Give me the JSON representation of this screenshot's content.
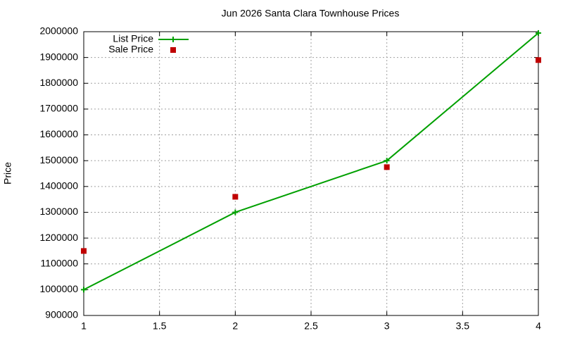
{
  "chart_data": {
    "type": "line",
    "title": "Jun 2026 Santa Clara Townhouse Prices",
    "y_label": "Price",
    "x": [
      1,
      2,
      3,
      4
    ],
    "series": [
      {
        "name": "List Price",
        "color": "#00a000",
        "mode": "lines+markers",
        "values": [
          1000000,
          1300000,
          1500000,
          1995000
        ]
      },
      {
        "name": "Sale Price",
        "color": "#c00000",
        "mode": "markers",
        "values": [
          1150000,
          1360000,
          1475000,
          1890000
        ]
      }
    ],
    "xlim": [
      1,
      4
    ],
    "xticks": [
      1,
      1.5,
      2,
      2.5,
      3,
      3.5,
      4
    ],
    "ylim": [
      900000,
      2000000
    ],
    "yticks": [
      900000,
      1000000,
      1100000,
      1200000,
      1300000,
      1400000,
      1500000,
      1600000,
      1700000,
      1800000,
      1900000,
      2000000
    ],
    "grid": true,
    "legend": "top-left"
  }
}
